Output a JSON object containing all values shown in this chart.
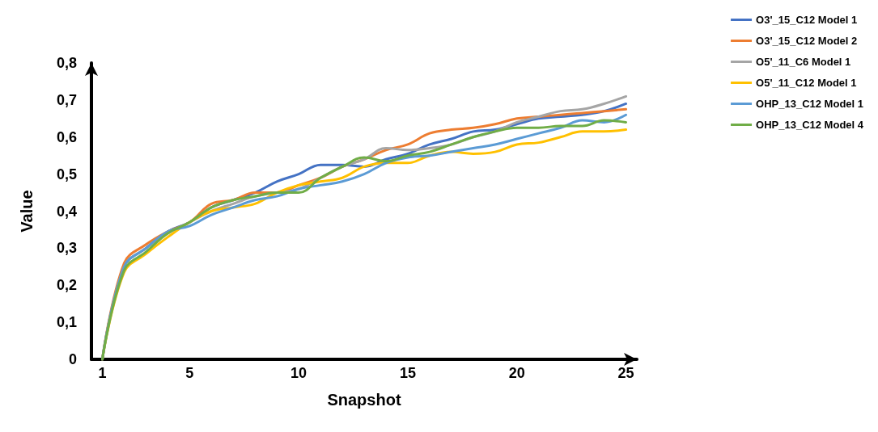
{
  "chart_data": {
    "type": "line",
    "xlabel": "Snapshot",
    "ylabel": "Value",
    "x": [
      1,
      2,
      3,
      4,
      5,
      6,
      7,
      8,
      9,
      10,
      11,
      12,
      13,
      14,
      15,
      16,
      17,
      18,
      19,
      20,
      21,
      22,
      23,
      24,
      25
    ],
    "xlim": [
      0.5,
      25.5
    ],
    "xticks": [
      1,
      5,
      10,
      15,
      20,
      25
    ],
    "ylim": [
      0,
      0.8
    ],
    "yticks": [
      0,
      {
        "value": 0.1,
        "label": "0,1"
      },
      {
        "value": 0.2,
        "label": "0,2"
      },
      {
        "value": 0.3,
        "label": "0,3"
      },
      {
        "value": 0.4,
        "label": "0,4"
      },
      {
        "value": 0.5,
        "label": "0,5"
      },
      {
        "value": 0.6,
        "label": "0,6"
      },
      {
        "value": 0.7,
        "label": "0,7"
      },
      {
        "value": 0.8,
        "label": "0,8"
      }
    ],
    "grid": false,
    "legend": "top right",
    "marker": "none",
    "line_style": "solid",
    "series": [
      {
        "name": "O3'_15_C12 Model 1",
        "color": "#4472c4",
        "values": [
          0,
          0.25,
          0.3,
          0.345,
          0.37,
          0.41,
          0.43,
          0.45,
          0.48,
          0.5,
          0.525,
          0.525,
          0.52,
          0.54,
          0.555,
          0.58,
          0.595,
          0.615,
          0.62,
          0.635,
          0.65,
          0.655,
          0.66,
          0.67,
          0.69
        ]
      },
      {
        "name": "O3'_15_C12 Model 2",
        "color": "#ed7d31",
        "values": [
          0,
          0.26,
          0.31,
          0.345,
          0.37,
          0.42,
          0.43,
          0.45,
          0.45,
          0.47,
          0.49,
          0.52,
          0.54,
          0.565,
          0.58,
          0.61,
          0.62,
          0.625,
          0.635,
          0.65,
          0.655,
          0.66,
          0.665,
          0.67,
          0.675
        ]
      },
      {
        "name": "O5'_11_C6 Model 1",
        "color": "#a5a5a5",
        "values": [
          0,
          0.25,
          0.3,
          0.34,
          0.37,
          0.4,
          0.42,
          0.44,
          0.45,
          0.46,
          0.49,
          0.52,
          0.54,
          0.57,
          0.565,
          0.57,
          0.58,
          0.6,
          0.615,
          0.64,
          0.655,
          0.67,
          0.675,
          0.69,
          0.71
        ]
      },
      {
        "name": "O5'_11_C12 Model 1",
        "color": "#ffc000",
        "values": [
          0,
          0.235,
          0.285,
          0.33,
          0.37,
          0.4,
          0.41,
          0.42,
          0.45,
          0.47,
          0.48,
          0.49,
          0.52,
          0.53,
          0.53,
          0.55,
          0.56,
          0.555,
          0.56,
          0.58,
          0.585,
          0.6,
          0.615,
          0.615,
          0.62
        ]
      },
      {
        "name": "OHP_13_C12 Model 1",
        "color": "#5b9bd5",
        "values": [
          0,
          0.25,
          0.3,
          0.345,
          0.36,
          0.39,
          0.41,
          0.43,
          0.44,
          0.46,
          0.47,
          0.48,
          0.5,
          0.53,
          0.545,
          0.55,
          0.56,
          0.57,
          0.58,
          0.595,
          0.61,
          0.625,
          0.645,
          0.64,
          0.66
        ]
      },
      {
        "name": "OHP_13_C12 Model 4",
        "color": "#70ad47",
        "values": [
          0,
          0.24,
          0.29,
          0.34,
          0.37,
          0.41,
          0.43,
          0.44,
          0.45,
          0.45,
          0.49,
          0.52,
          0.545,
          0.535,
          0.55,
          0.56,
          0.58,
          0.6,
          0.615,
          0.625,
          0.625,
          0.63,
          0.63,
          0.645,
          0.64
        ]
      }
    ]
  }
}
